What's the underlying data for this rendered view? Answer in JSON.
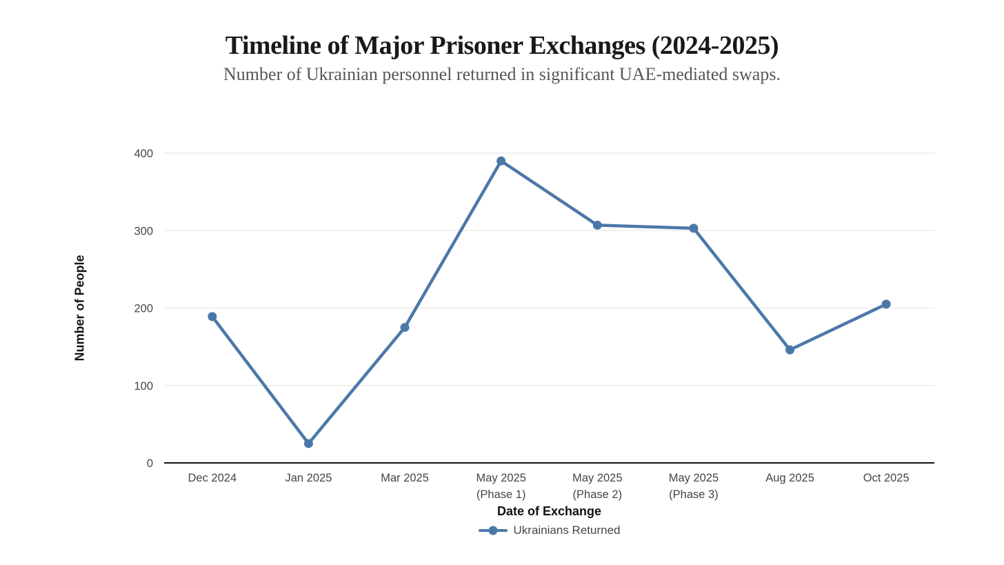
{
  "header": {
    "title": "Timeline of Major Prisoner Exchanges (2024-2025)",
    "subtitle": "Number of Ukrainian personnel returned in significant UAE-mediated swaps."
  },
  "chart_data": {
    "type": "line",
    "title": "Timeline of Major Prisoner Exchanges (2024-2025)",
    "subtitle": "Number of Ukrainian personnel returned in significant UAE-mediated swaps.",
    "categories": [
      "Dec 2024",
      "Jan 2025",
      "Mar 2025",
      "May 2025 (Phase 1)",
      "May 2025 (Phase 2)",
      "May 2025 (Phase 3)",
      "Aug 2025",
      "Oct 2025"
    ],
    "series": [
      {
        "name": "Ukrainians Returned",
        "values": [
          189,
          25,
          175,
          390,
          307,
          303,
          146,
          205
        ]
      }
    ],
    "xlabel": "Date of Exchange",
    "ylabel": "Number of People",
    "ylim": [
      0,
      400
    ],
    "yticks": [
      0,
      100,
      200,
      300,
      400
    ],
    "grid": true,
    "legend_position": "bottom",
    "colors": {
      "line": "#4c78a8",
      "marker": "#4c78a8",
      "grid": "#ececec",
      "axis_line": "#141414",
      "tick_label": "#454545",
      "axis_title": "#111111",
      "title": "#191919",
      "subtitle": "#565656",
      "background": "#ffffff"
    }
  }
}
